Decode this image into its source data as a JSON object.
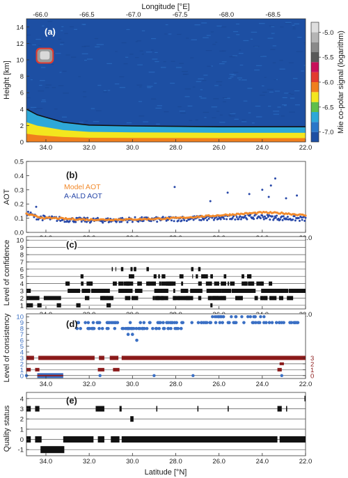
{
  "chart_data": [
    {
      "id": "a",
      "type": "heatmap",
      "panel_label": "(a)",
      "xlabel_top": "Longitude [°E]",
      "ylabel": "Height [km]",
      "colorbar_label": "Mie co-polar signal (logarithm)",
      "top_ticks": [
        "-66.0",
        "-66.5",
        "-67.0",
        "-67.5",
        "-68.0",
        "-68.5"
      ],
      "top_tick_values": [
        -66.0,
        -66.5,
        -67.0,
        -67.5,
        -68.0,
        -68.5
      ],
      "bottom_ticks": [
        "34.0",
        "32.0",
        "30.0",
        "28.0",
        "26.0",
        "24.0",
        "22.0"
      ],
      "bottom_tick_values": [
        34.0,
        32.0,
        30.0,
        28.0,
        26.0,
        24.0,
        22.0
      ],
      "y_ticks": [
        "0",
        "2",
        "4",
        "6",
        "8",
        "10",
        "12",
        "14"
      ],
      "y_tick_values": [
        0,
        2,
        4,
        6,
        8,
        10,
        12,
        14
      ],
      "colorbar_ticks": [
        "-5.0",
        "-5.5",
        "-6.0",
        "-6.5",
        "-7.0"
      ],
      "colorbar_tick_values": [
        -5.0,
        -5.5,
        -6.0,
        -6.5,
        -7.0
      ],
      "colorbar_range": [
        -7.2,
        -4.8
      ],
      "xlim_lat": [
        34.9,
        22.0
      ],
      "lon_at_lat_limits": [
        -65.85,
        -68.85
      ],
      "ylim": [
        0,
        15
      ],
      "cloud": {
        "lat": [
          34.4,
          33.7
        ],
        "height": [
          9.7,
          11.3
        ],
        "level": -5.3
      },
      "boundary_layer_top": {
        "lat": [
          34.9,
          34.4,
          34.0,
          33.2,
          32.0,
          30.0,
          28.0,
          26.0,
          24.0,
          22.0
        ],
        "height": [
          4.0,
          3.3,
          3.0,
          2.4,
          2.05,
          1.95,
          1.9,
          1.85,
          1.85,
          1.85
        ]
      }
    },
    {
      "id": "b",
      "type": "scatter",
      "panel_label": "(b)",
      "ylabel": "AOT",
      "y_ticks": [
        "0.0",
        "0.1",
        "0.2",
        "0.3",
        "0.4",
        "0.5"
      ],
      "y_tick_values": [
        0,
        0.1,
        0.2,
        0.3,
        0.4,
        0.5
      ],
      "x_ticks": [
        "34.0",
        "32.0",
        "30.0",
        "28.0",
        "26.0",
        "24.0",
        "22.0"
      ],
      "x_tick_values": [
        34.0,
        32.0,
        30.0,
        28.0,
        26.0,
        24.0,
        22.0
      ],
      "xlim": [
        34.9,
        22.0
      ],
      "ylim": [
        0,
        0.5
      ],
      "series": [
        {
          "name": "Model AOT",
          "color": "#f28a2b",
          "x": [
            34.9,
            34.4,
            34.0,
            33.5,
            33.0,
            32.0,
            31.0,
            30.0,
            29.0,
            28.0,
            27.0,
            26.0,
            25.0,
            24.0,
            23.0,
            22.0
          ],
          "y": [
            0.13,
            0.11,
            0.1,
            0.1,
            0.095,
            0.09,
            0.09,
            0.092,
            0.095,
            0.1,
            0.11,
            0.12,
            0.13,
            0.14,
            0.135,
            0.12
          ]
        },
        {
          "name": "A-ALD AOT",
          "color": "#2747a8",
          "x": [
            34.9,
            34.5,
            34.0,
            33.5,
            33.0,
            32.0,
            31.0,
            30.0,
            29.0,
            28.0,
            27.0,
            26.0,
            25.0,
            24.0,
            23.0,
            22.0
          ],
          "y": [
            0.14,
            0.11,
            0.1,
            0.095,
            0.09,
            0.085,
            0.085,
            0.09,
            0.09,
            0.095,
            0.1,
            0.1,
            0.11,
            0.11,
            0.1,
            0.095
          ],
          "outliers": [
            [
              34.45,
              0.18
            ],
            [
              28.05,
              0.32
            ],
            [
              26.4,
              0.22
            ],
            [
              25.6,
              0.28
            ],
            [
              24.6,
              0.27
            ],
            [
              24.0,
              0.3
            ],
            [
              23.7,
              0.25
            ],
            [
              23.6,
              0.33
            ],
            [
              23.4,
              0.38
            ],
            [
              22.9,
              0.24
            ],
            [
              22.4,
              0.26
            ]
          ]
        }
      ]
    },
    {
      "id": "c",
      "type": "scatter",
      "panel_label": "(c)",
      "ylabel": "Level of confidence",
      "y_ticks": [
        "1",
        "2",
        "3",
        "4",
        "5",
        "6",
        "7",
        "8",
        "9",
        "10"
      ],
      "y_tick_values": [
        1,
        2,
        3,
        4,
        5,
        6,
        7,
        8,
        9,
        10
      ],
      "x_ticks": [
        "34.0",
        "32.0",
        "30.0",
        "28.0",
        "26.0",
        "24.0",
        "22.0"
      ],
      "x_tick_values": [
        34.0,
        32.0,
        30.0,
        28.0,
        26.0,
        24.0,
        22.0
      ],
      "xlim": [
        34.9,
        22.0
      ],
      "ylim": [
        0.5,
        10.5
      ],
      "occupied_levels": [
        1,
        2,
        3,
        4,
        5,
        6
      ]
    },
    {
      "id": "d",
      "type": "scatter",
      "panel_label": "(d)",
      "ylabel": "Level of consistency",
      "y_ticks_left": [
        "0",
        "1",
        "2",
        "3",
        "4",
        "5",
        "6",
        "7",
        "8",
        "9",
        "10"
      ],
      "y_tick_values_left": [
        0,
        1,
        2,
        3,
        4,
        5,
        6,
        7,
        8,
        9,
        10
      ],
      "y_ticks_right": [
        "0",
        "1",
        "2",
        "3"
      ],
      "y_tick_values_right": [
        0,
        1,
        2,
        3
      ],
      "x_ticks": [
        "34.0",
        "32.0",
        "30.0",
        "28.0",
        "26.0",
        "24.0",
        "22.0"
      ],
      "x_tick_values": [
        34.0,
        32.0,
        30.0,
        28.0,
        26.0,
        24.0,
        22.0
      ],
      "xlim": [
        34.9,
        22.0
      ],
      "ylim": [
        -0.5,
        10.5
      ],
      "colors": {
        "left_axis": "#3a6fc4",
        "right_axis": "#8b1a1a"
      }
    },
    {
      "id": "e",
      "type": "scatter",
      "panel_label": "(e)",
      "ylabel": "Quality status",
      "xlabel": "Latitude [°N]",
      "y_ticks": [
        "-1",
        "0",
        "1",
        "2",
        "3",
        "4"
      ],
      "y_tick_values": [
        -1,
        0,
        1,
        2,
        3,
        4
      ],
      "x_ticks": [
        "34.0",
        "32.0",
        "30.0",
        "28.0",
        "26.0",
        "24.0",
        "22.0"
      ],
      "x_tick_values": [
        34.0,
        32.0,
        30.0,
        28.0,
        26.0,
        24.0,
        22.0
      ],
      "xlim": [
        34.9,
        22.0
      ],
      "ylim": [
        -1.6,
        4.6
      ],
      "occupied_levels": [
        -1,
        0,
        2,
        3,
        4
      ]
    }
  ]
}
